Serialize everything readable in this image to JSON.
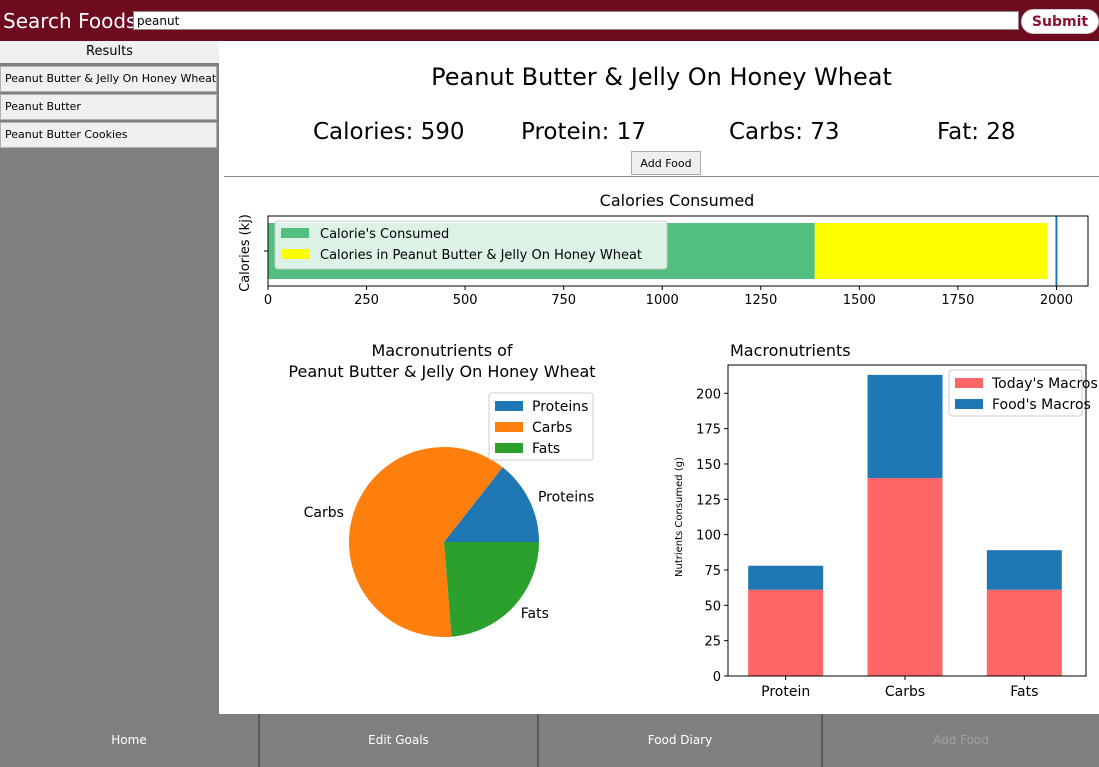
{
  "search": {
    "label": "Search Foods:",
    "value": "peanut",
    "submit_label": "Submit"
  },
  "results": {
    "header": "Results",
    "items": [
      "Peanut Butter & Jelly On Honey Wheat",
      "Peanut Butter",
      "Peanut Butter Cookies"
    ]
  },
  "food": {
    "name": "Peanut Butter & Jelly On Honey Wheat",
    "calories_label": "Calories: 590",
    "protein_label": "Protein: 17",
    "carbs_label": "Carbs: 73",
    "fat_label": "Fat: 28",
    "add_food_label": "Add Food"
  },
  "chart_data": [
    {
      "type": "bar",
      "orientation": "horizontal",
      "title": "Calories Consumed",
      "ylabel": "Calories (kj)",
      "xlim": [
        0,
        2080
      ],
      "xticks": [
        0,
        250,
        500,
        750,
        1000,
        1250,
        1500,
        1750,
        2000
      ],
      "goal_line": 2000,
      "legend_position": "upper-left",
      "series": [
        {
          "name": "Calorie's Consumed",
          "value": 1387,
          "color": "#52bf80"
        },
        {
          "name": "Calories in Peanut Butter & Jelly On Honey Wheat",
          "value": 590,
          "color": "#ffff00"
        }
      ]
    },
    {
      "type": "pie",
      "title_lines": [
        "Macronutrients of",
        "Peanut Butter & Jelly On Honey Wheat"
      ],
      "legend_position": "upper-right",
      "slices": [
        {
          "label": "Proteins",
          "value": 17,
          "color": "#1f77b4"
        },
        {
          "label": "Carbs",
          "value": 73,
          "color": "#ff7f0e"
        },
        {
          "label": "Fats",
          "value": 28,
          "color": "#2ca02c"
        }
      ]
    },
    {
      "type": "bar",
      "stacked": true,
      "title": "Macronutrients",
      "ylabel": "Nutrients Consumed (g)",
      "categories": [
        "Protein",
        "Carbs",
        "Fats"
      ],
      "ylim": [
        0,
        220
      ],
      "yticks": [
        0,
        25,
        50,
        75,
        100,
        125,
        150,
        175,
        200
      ],
      "legend_position": "upper-right",
      "series": [
        {
          "name": "Today's Macros",
          "values": [
            61,
            140,
            61
          ],
          "color": "#ff6666"
        },
        {
          "name": "Food's Macros",
          "values": [
            17,
            73,
            28
          ],
          "color": "#1f77b4"
        }
      ]
    }
  ],
  "nav": {
    "items": [
      {
        "label": "Home",
        "enabled": true
      },
      {
        "label": "Edit Goals",
        "enabled": true
      },
      {
        "label": "Food Diary",
        "enabled": true
      },
      {
        "label": "Add Food",
        "enabled": false
      }
    ]
  }
}
